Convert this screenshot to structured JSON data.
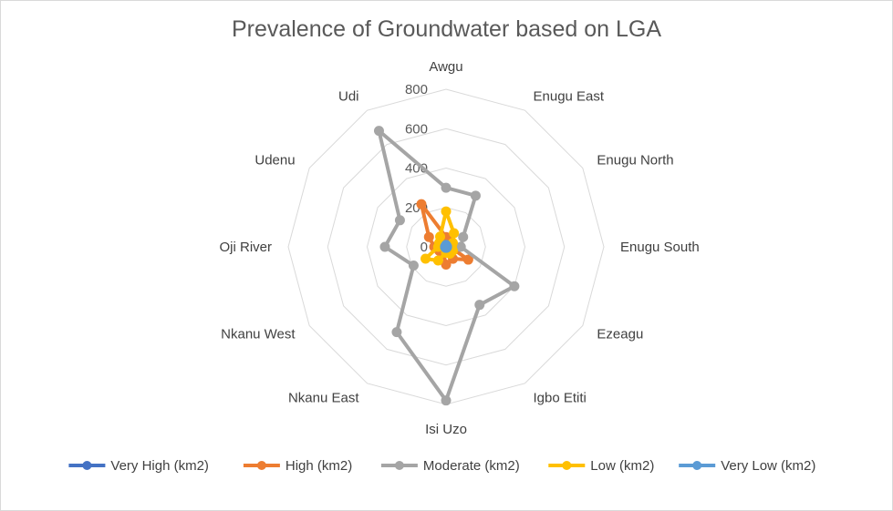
{
  "chart_data": {
    "type": "radar",
    "title": "Prevalence of Groundwater based on LGA",
    "categories": [
      "Awgu",
      "Enugu East",
      "Enugu North",
      "Enugu South",
      "Ezeagu",
      "Igbo Etiti",
      "Isi Uzo",
      "Nkanu East",
      "Nkanu West",
      "Oji River",
      "Udenu",
      "Udi"
    ],
    "rlim": [
      0,
      800
    ],
    "ticks": [
      0,
      200,
      400,
      600,
      800
    ],
    "grid": true,
    "legend_position": "bottom",
    "series": [
      {
        "name": "Very High (km2)",
        "color": "#4472c4",
        "values": [
          10,
          5,
          5,
          5,
          5,
          5,
          5,
          5,
          5,
          5,
          5,
          5
        ]
      },
      {
        "name": "High (km2)",
        "color": "#ed7d31",
        "values": [
          50,
          30,
          30,
          20,
          130,
          70,
          90,
          30,
          40,
          60,
          100,
          250
        ]
      },
      {
        "name": "Moderate (km2)",
        "color": "#a5a5a5",
        "values": [
          300,
          300,
          100,
          75,
          400,
          340,
          780,
          500,
          190,
          310,
          270,
          680
        ]
      },
      {
        "name": "Low (km2)",
        "color": "#ffc000",
        "values": [
          180,
          80,
          40,
          30,
          40,
          40,
          30,
          80,
          120,
          40,
          40,
          60
        ]
      },
      {
        "name": "Very Low (km2)",
        "color": "#5b9bd5",
        "values": [
          10,
          5,
          5,
          5,
          5,
          5,
          5,
          5,
          5,
          5,
          5,
          5
        ]
      }
    ]
  }
}
